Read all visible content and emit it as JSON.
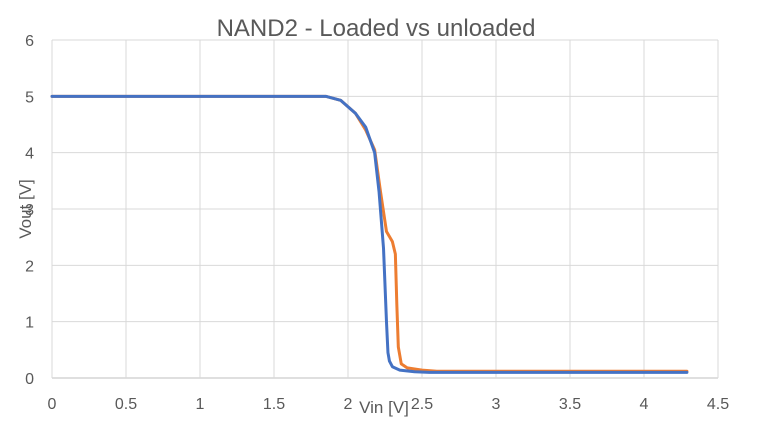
{
  "chart_data": {
    "type": "line",
    "title": "NAND2  - Loaded vs unloaded",
    "xlabel": "Vin [V]",
    "ylabel": "Vout [V]",
    "xlim": [
      0,
      4.5
    ],
    "ylim": [
      0,
      6
    ],
    "x_ticks": [
      "0",
      "0.5",
      "1",
      "1.5",
      "2",
      "2.5",
      "3",
      "3.5",
      "4",
      "4.5"
    ],
    "y_ticks": [
      "0",
      "1",
      "2",
      "3",
      "4",
      "5",
      "6"
    ],
    "grid": true,
    "legend": "none",
    "series": [
      {
        "color": "#ED7D31",
        "x": [
          0,
          1.85,
          1.95,
          2.05,
          2.12,
          2.18,
          2.22,
          2.26,
          2.3,
          2.32,
          2.33,
          2.34,
          2.36,
          2.4,
          2.5,
          2.6,
          3.0,
          4.29
        ],
        "y": [
          5,
          5,
          4.93,
          4.7,
          4.4,
          4.05,
          3.3,
          2.6,
          2.42,
          2.2,
          1.3,
          0.55,
          0.25,
          0.18,
          0.14,
          0.12,
          0.12,
          0.12
        ]
      },
      {
        "color": "#4472C4",
        "x": [
          0,
          1.85,
          1.95,
          2.05,
          2.12,
          2.18,
          2.21,
          2.24,
          2.26,
          2.27,
          2.28,
          2.3,
          2.35,
          2.45,
          2.55,
          3.0,
          4.29
        ],
        "y": [
          5,
          5,
          4.93,
          4.7,
          4.45,
          4.0,
          3.3,
          2.3,
          1.0,
          0.45,
          0.3,
          0.2,
          0.14,
          0.11,
          0.1,
          0.1,
          0.1
        ]
      }
    ]
  }
}
